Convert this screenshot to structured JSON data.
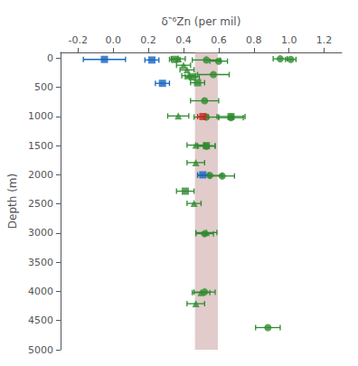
{
  "chart_data": {
    "type": "scatter",
    "xlabel": "δ‶⁶Zn (per mil)",
    "ylabel": "Depth (m)",
    "xlim": [
      -0.3,
      1.3
    ],
    "ylim": [
      5000,
      -100
    ],
    "xticks": [
      -0.2,
      {
        "value": 0.0,
        "label": "0.0"
      },
      0.2,
      0.4,
      0.6,
      0.8,
      {
        "value": 1.0,
        "label": "1.0"
      },
      1.2
    ],
    "yticks": [
      0,
      500,
      1000,
      1500,
      2000,
      2500,
      3000,
      3500,
      4000,
      4500,
      5000
    ],
    "grid": false,
    "bands": [
      {
        "x_from": 0.465,
        "x_to": 0.595,
        "color": "#c8a0a0"
      }
    ],
    "series": [
      {
        "color": "#2e8b2e",
        "marker": "circle",
        "x": [
          0.53,
          0.6,
          0.95,
          1.01,
          0.57,
          0.52,
          0.53,
          0.67,
          0.53,
          0.55,
          0.62,
          0.52,
          0.52,
          0.88
        ],
        "values": [
          30,
          50,
          10,
          20,
          280,
          730,
          1010,
          1020,
          1510,
          2010,
          2020,
          3010,
          4010,
          4620
        ],
        "xerr": [
          0.08,
          0.05,
          0.04,
          0.03,
          0.09,
          0.08,
          0.07,
          0.07,
          0.05,
          0.07,
          0.07,
          0.05,
          0.06,
          0.07
        ]
      },
      {
        "color": "#2e8b2e",
        "marker": "triangle",
        "x": [
          0.37,
          0.4,
          0.42,
          0.43,
          0.37,
          0.47,
          0.47,
          0.46,
          0.53,
          0.5,
          0.47
        ],
        "values": [
          10,
          120,
          200,
          300,
          990,
          1490,
          1790,
          2490,
          2990,
          4020,
          4210
        ],
        "xerr": [
          0.04,
          0.04,
          0.04,
          0.04,
          0.06,
          0.05,
          0.05,
          0.04,
          0.06,
          0.05,
          0.05
        ]
      },
      {
        "color": "#2e8b2e",
        "marker": "square",
        "x": [
          0.35,
          0.45,
          0.48,
          0.67,
          0.53,
          0.41
        ],
        "values": [
          20,
          320,
          420,
          1000,
          1500,
          2280
        ],
        "xerr": [
          0.03,
          0.04,
          0.04,
          0.08,
          0.05,
          0.05
        ]
      },
      {
        "color": "#1565C0",
        "marker": "square",
        "x": [
          -0.05,
          0.22,
          0.28,
          0.51
        ],
        "values": [
          20,
          30,
          430,
          2000
        ],
        "xerr": [
          0.12,
          0.04,
          0.04,
          0.03
        ]
      },
      {
        "color": "#cc2222",
        "marker": "square",
        "x": [
          0.51
        ],
        "values": [
          1000
        ],
        "xerr": [
          0.03
        ]
      }
    ]
  }
}
